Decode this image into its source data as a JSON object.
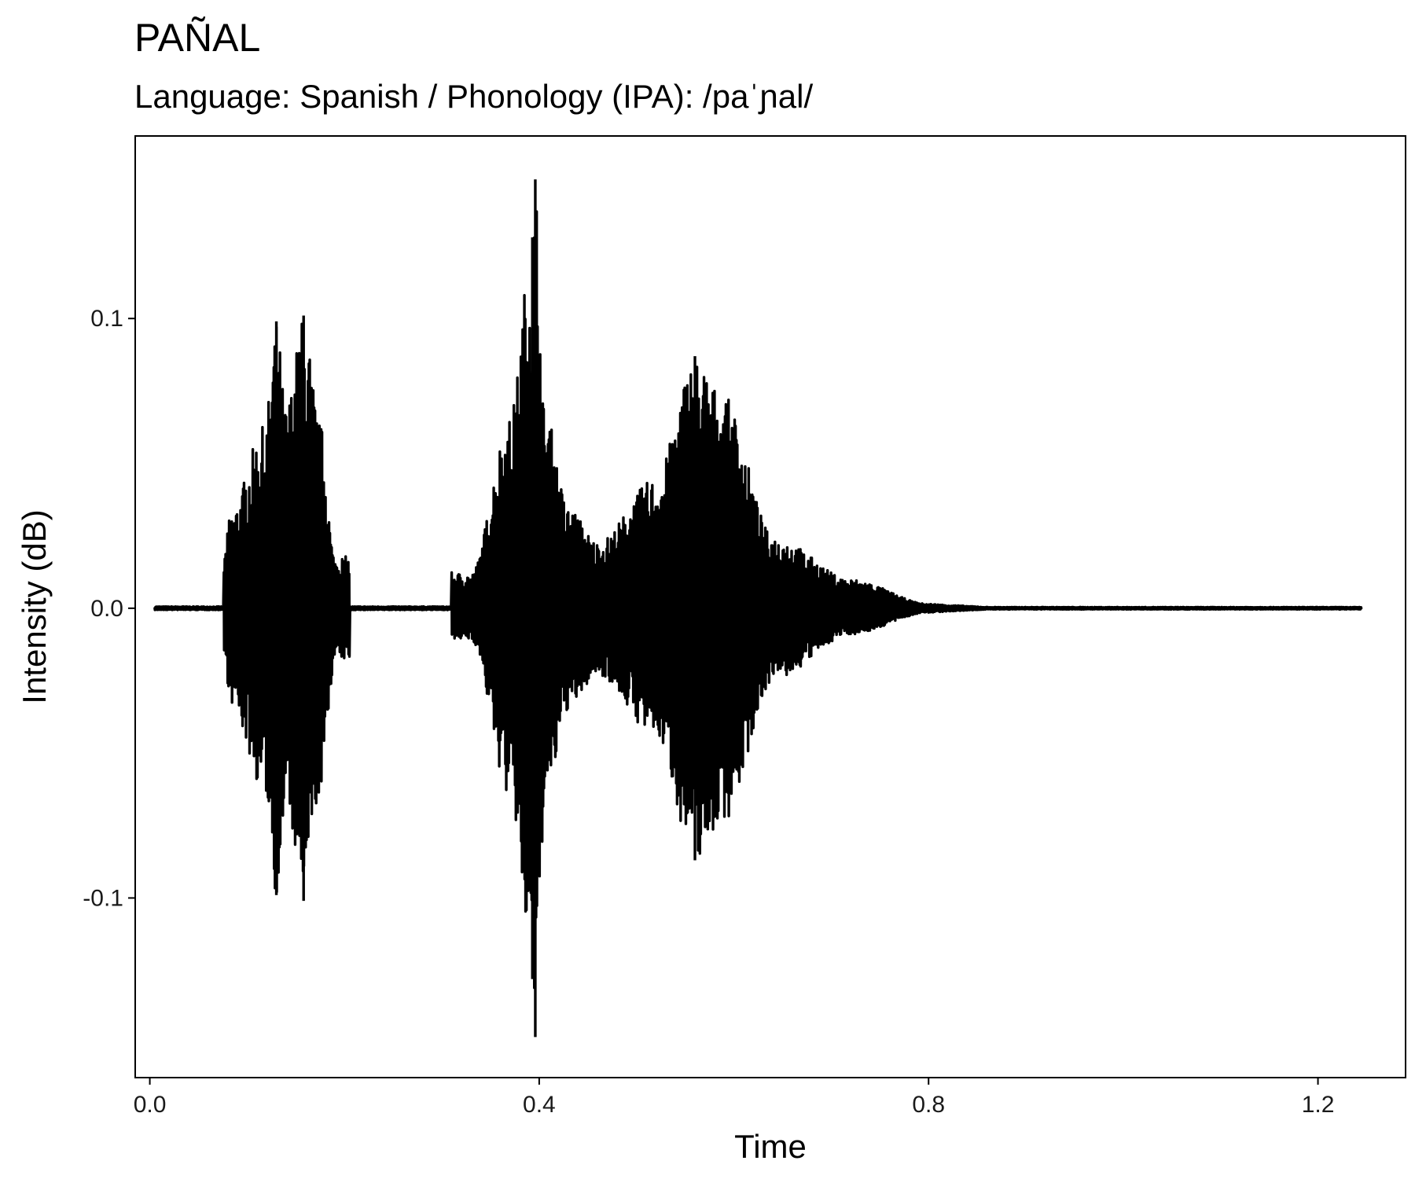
{
  "chart_data": {
    "type": "line",
    "title": "PAÑAL",
    "subtitle": "Language: Spanish / Phonology (IPA): /paˈɲal/",
    "xlabel": "Time",
    "ylabel": "Intensity (dB)",
    "xlim": [
      -0.015,
      1.29
    ],
    "ylim": [
      -0.162,
      0.163
    ],
    "x_ticks": [
      0.0,
      0.4,
      0.8,
      1.2
    ],
    "x_tick_labels": [
      "0.0",
      "0.4",
      "0.8",
      "1.2"
    ],
    "y_ticks": [
      0.1,
      0.0,
      -0.1
    ],
    "y_tick_labels": [
      "0.1",
      "0.0",
      "-0.1"
    ],
    "grid": false,
    "legend": "none",
    "series": [
      {
        "color": "#000000",
        "x_range": [
          0.005,
          1.245
        ],
        "envelope_peaks": [
          {
            "time": 0.082,
            "max": 0.033,
            "min": -0.033
          },
          {
            "time": 0.118,
            "max": 0.063,
            "min": -0.064
          },
          {
            "time": 0.13,
            "max": 0.099,
            "min": -0.099
          },
          {
            "time": 0.14,
            "max": 0.07,
            "min": -0.07
          },
          {
            "time": 0.158,
            "max": 0.101,
            "min": -0.101
          },
          {
            "time": 0.175,
            "max": 0.064,
            "min": -0.064
          },
          {
            "time": 0.19,
            "max": 0.018,
            "min": -0.018
          },
          {
            "time": 0.33,
            "max": 0.012,
            "min": -0.011
          },
          {
            "time": 0.37,
            "max": 0.066,
            "min": -0.066
          },
          {
            "time": 0.393,
            "max": 0.128,
            "min": -0.128
          },
          {
            "time": 0.396,
            "max": 0.148,
            "min": -0.148
          },
          {
            "time": 0.405,
            "max": 0.07,
            "min": -0.07
          },
          {
            "time": 0.43,
            "max": 0.035,
            "min": -0.035
          },
          {
            "time": 0.46,
            "max": 0.023,
            "min": -0.023
          },
          {
            "time": 0.52,
            "max": 0.045,
            "min": -0.045
          },
          {
            "time": 0.56,
            "max": 0.087,
            "min": -0.087
          },
          {
            "time": 0.59,
            "max": 0.073,
            "min": -0.073
          },
          {
            "time": 0.64,
            "max": 0.025,
            "min": -0.025
          },
          {
            "time": 0.72,
            "max": 0.01,
            "min": -0.009
          },
          {
            "time": 0.8,
            "max": 0.0015,
            "min": -0.0015
          }
        ]
      }
    ]
  }
}
